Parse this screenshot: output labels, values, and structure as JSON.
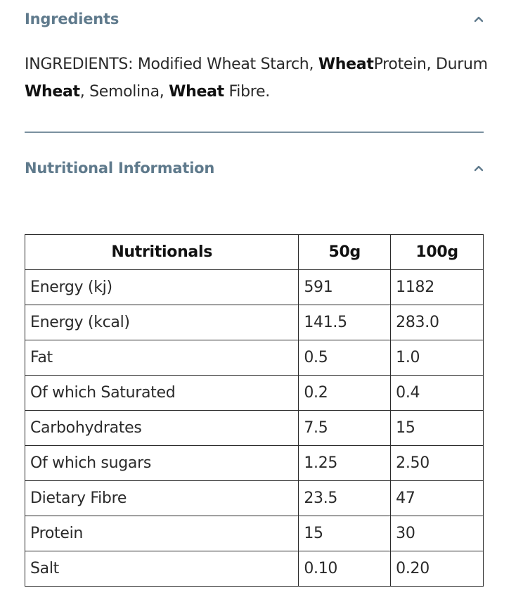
{
  "ingredients": {
    "title": "Ingredients",
    "toggle_icon": "chevron-up-icon",
    "text_segments": [
      {
        "text": "INGREDIENTS: Modified Wheat Starch, ",
        "bold": false
      },
      {
        "text": "Wheat",
        "bold": true
      },
      {
        "text": "Protein, Durum ",
        "bold": false
      },
      {
        "text": "Wheat",
        "bold": true
      },
      {
        "text": ", Semolina, ",
        "bold": false
      },
      {
        "text": "Wheat",
        "bold": true
      },
      {
        "text": " Fibre.",
        "bold": false
      }
    ]
  },
  "nutrition": {
    "title": "Nutritional Information",
    "toggle_icon": "chevron-up-icon",
    "table": {
      "headers": [
        "Nutritionals",
        "50g",
        "100g"
      ],
      "rows": [
        [
          "Energy (kj)",
          "591",
          "1182"
        ],
        [
          "Energy (kcal)",
          "141.5",
          "283.0"
        ],
        [
          "Fat",
          "0.5",
          "1.0"
        ],
        [
          "Of which Saturated",
          "0.2",
          "0.4"
        ],
        [
          "Carbohydrates",
          "7.5",
          "15"
        ],
        [
          "Of which sugars",
          "1.25",
          "2.50"
        ],
        [
          "Dietary Fibre",
          "23.5",
          "47"
        ],
        [
          "Protein",
          "15",
          "30"
        ],
        [
          "Salt",
          "0.10",
          "0.20"
        ]
      ]
    }
  },
  "colors": {
    "heading": "#5f7a8c",
    "divider": "#7a90a0",
    "text": "#2a2a2a",
    "border": "#2a2a2a"
  }
}
